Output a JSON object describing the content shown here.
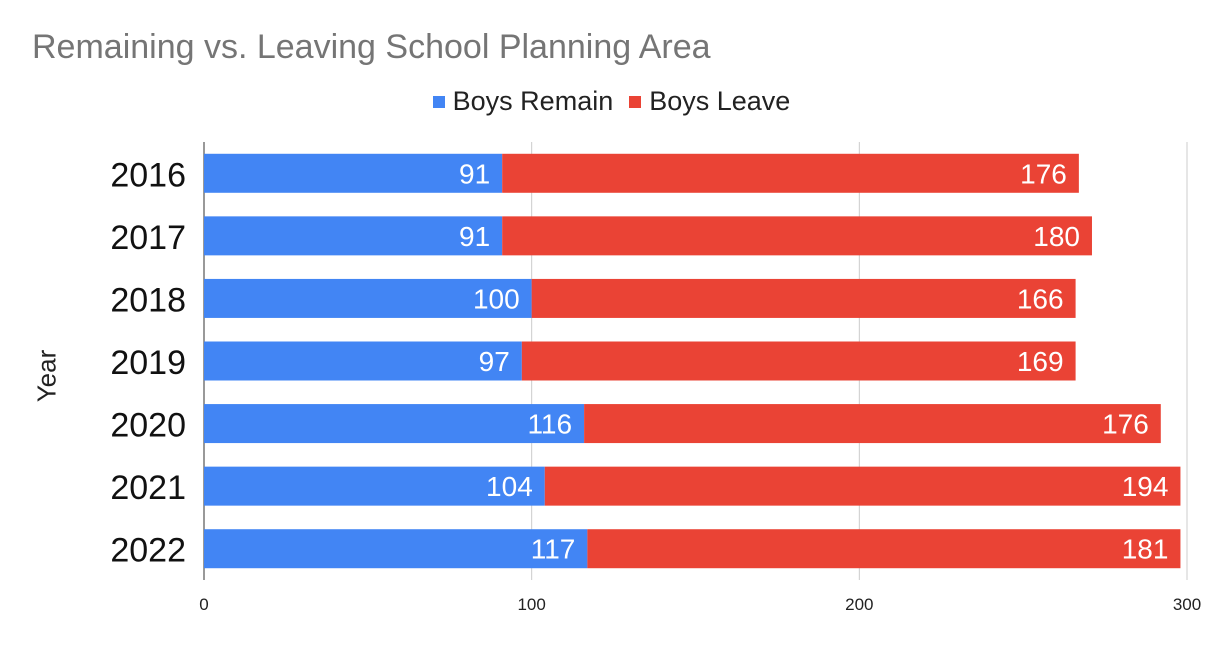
{
  "chart_data": {
    "type": "bar",
    "orientation": "horizontal",
    "stacked": true,
    "title": "Remaining vs. Leaving School Planning Area",
    "xlabel": "",
    "ylabel": "Year",
    "categories": [
      "2016",
      "2017",
      "2018",
      "2019",
      "2020",
      "2021",
      "2022"
    ],
    "series": [
      {
        "name": "Boys Remain",
        "color": "#4285f4",
        "values": [
          91,
          91,
          100,
          97,
          116,
          104,
          117
        ]
      },
      {
        "name": "Boys Leave",
        "color": "#ea4335",
        "values": [
          176,
          180,
          166,
          169,
          176,
          194,
          181
        ]
      }
    ],
    "xlim": [
      0,
      300
    ],
    "xticks": [
      "0",
      "100",
      "200",
      "300"
    ],
    "grid": "vertical",
    "legend_position": "top",
    "data_labels": true
  }
}
